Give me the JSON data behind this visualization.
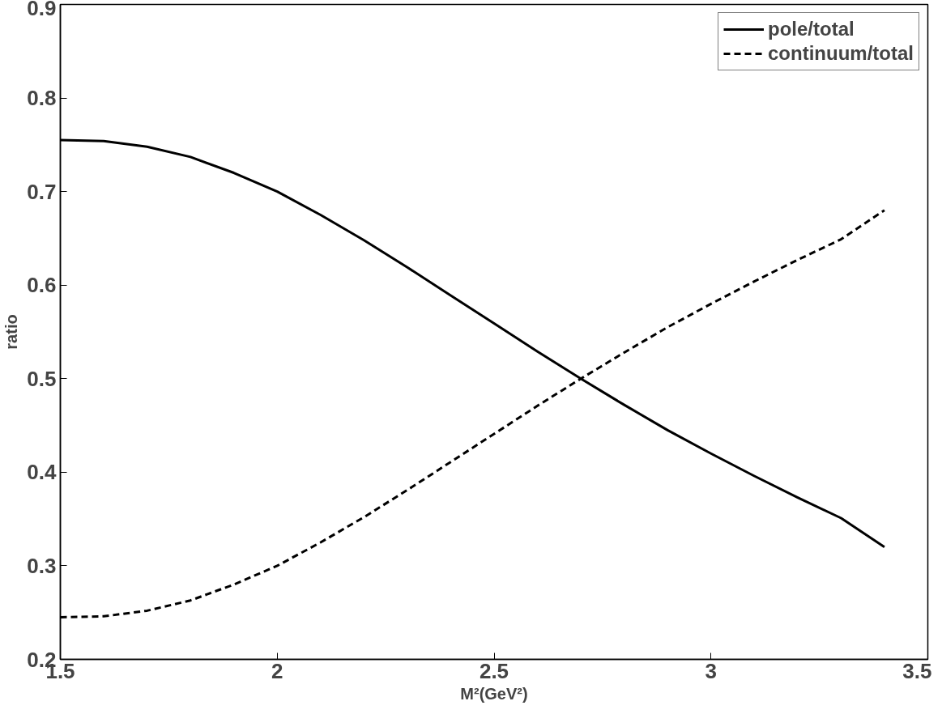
{
  "chart_data": {
    "type": "line",
    "xlabel": "M²(GeV²)",
    "ylabel": "ratio",
    "x": [
      1.5,
      1.6,
      1.7,
      1.8,
      1.9,
      2.0,
      2.1,
      2.2,
      2.3,
      2.4,
      2.5,
      2.6,
      2.7,
      2.8,
      2.9,
      3.0,
      3.1,
      3.2,
      3.3,
      3.4
    ],
    "series": [
      {
        "name": "pole/total",
        "color": "#000000",
        "line_style": "solid",
        "values": [
          0.755,
          0.754,
          0.748,
          0.737,
          0.72,
          0.7,
          0.675,
          0.648,
          0.619,
          0.589,
          0.559,
          0.529,
          0.5,
          0.472,
          0.445,
          0.42,
          0.396,
          0.373,
          0.351,
          0.32
        ]
      },
      {
        "name": "continuum/total",
        "color": "#000000",
        "line_style": "dashed",
        "values": [
          0.245,
          0.246,
          0.252,
          0.263,
          0.28,
          0.3,
          0.325,
          0.352,
          0.381,
          0.411,
          0.441,
          0.471,
          0.5,
          0.528,
          0.555,
          0.58,
          0.604,
          0.627,
          0.649,
          0.68
        ]
      }
    ],
    "xlim": [
      1.5,
      3.5
    ],
    "ylim": [
      0.2,
      0.9
    ],
    "xticks": [
      1.5,
      2,
      2.5,
      3,
      3.5
    ],
    "yticks": [
      0.2,
      0.3,
      0.4,
      0.5,
      0.6,
      0.7,
      0.8,
      0.9
    ],
    "grid": false,
    "legend": "top right",
    "marker": "none"
  }
}
